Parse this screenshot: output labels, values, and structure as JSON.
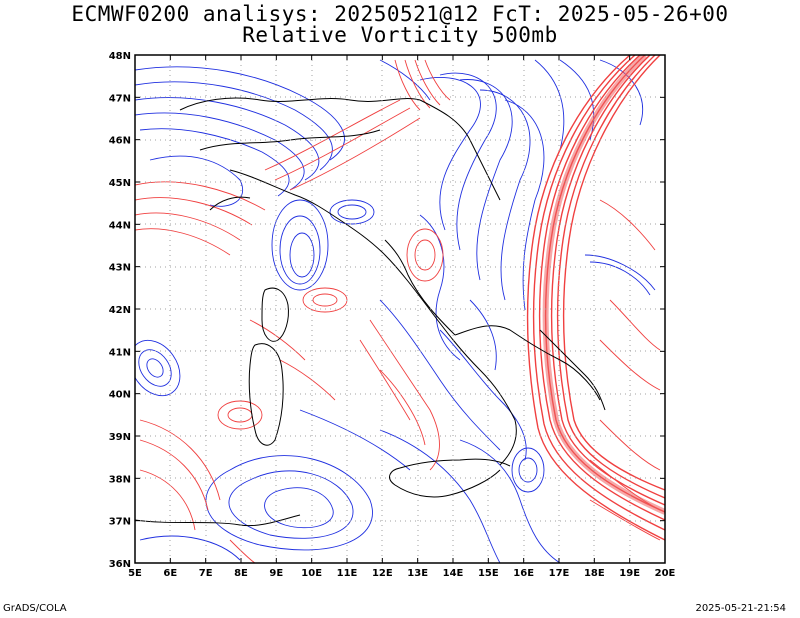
{
  "title": {
    "line1": "ECMWF0200 analisys: 20250521@12 FcT: 2025-05-26+00",
    "line2": "Relative Vorticity 500mb"
  },
  "footer": {
    "left": "GrADS/COLA",
    "right": "2025-05-21-21:54"
  },
  "map": {
    "lon_range": [
      5,
      20
    ],
    "lat_range": [
      36,
      48
    ],
    "lon_labels": [
      "5E",
      "6E",
      "7E",
      "8E",
      "9E",
      "10E",
      "11E",
      "12E",
      "13E",
      "14E",
      "15E",
      "16E",
      "17E",
      "18E",
      "19E",
      "20E"
    ],
    "lat_labels": [
      "36N",
      "37N",
      "38N",
      "39N",
      "40N",
      "41N",
      "42N",
      "43N",
      "44N",
      "45N",
      "46N",
      "47N",
      "48N"
    ],
    "grid": "dotted",
    "colors": {
      "positive": "#f04040",
      "negative": "#2030e0",
      "borders": "#000000",
      "grid": "#a0a0a0"
    }
  }
}
